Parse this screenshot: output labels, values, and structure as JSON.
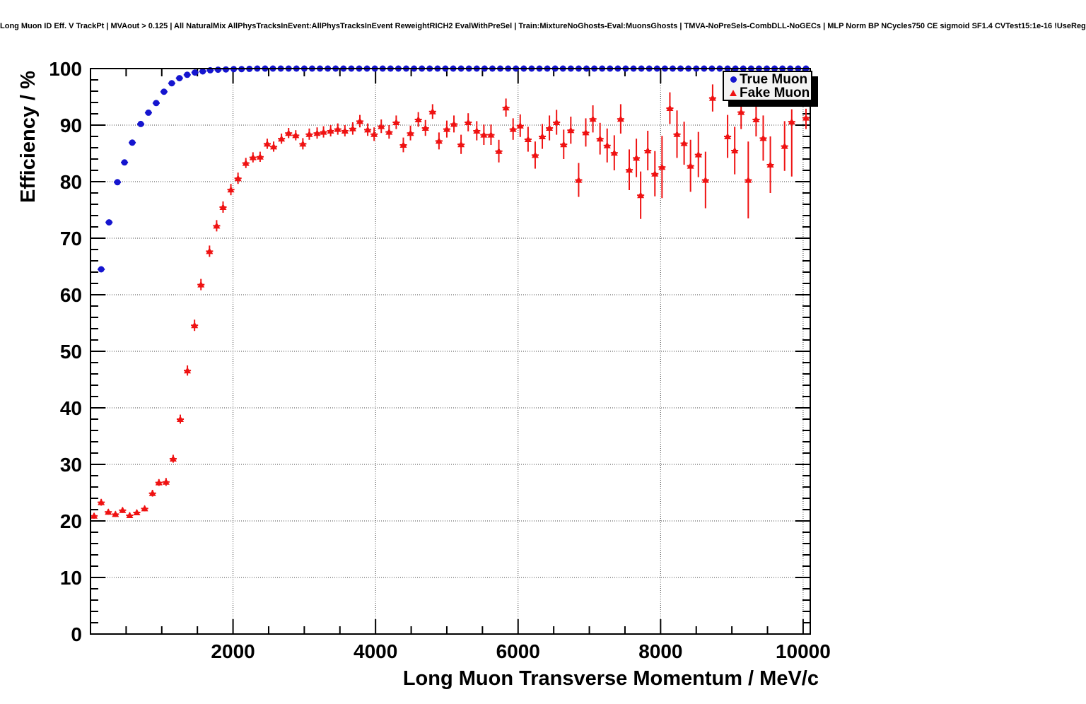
{
  "header": {
    "title": "Long Muon ID Eff. V TrackPt | MVAout > 0.125 | All NaturalMix AllPhysTracksInEvent:AllPhysTracksInEvent ReweightRICH2 EvalWithPreSel | Train:MixtureNoGhosts-Eval:MuonsGhosts | TMVA-NoPreSels-CombDLL-NoGECs | MLP Norm BP NCycles750 CE sigmoid SF1.4 CVTest15:1e-16 !UseReg"
  },
  "legend": {
    "items": [
      {
        "label": "True Muon",
        "marker": "circle",
        "color": "#1515cf"
      },
      {
        "label": "Fake Muon",
        "marker": "triangle",
        "color": "#ef1212"
      }
    ]
  },
  "colors": {
    "true_muon": "#1515cf",
    "fake_muon": "#ef1212",
    "frame": "#000000",
    "grid": "#444444",
    "background": "#ffffff"
  },
  "chart_data": {
    "type": "scatter",
    "title": "Long Muon ID Eff. V TrackPt | MVAout > 0.125 | All NaturalMix AllPhysTracksInEvent:AllPhysTracksInEvent ReweightRICH2 EvalWithPreSel | Train:MixtureNoGhosts-Eval:MuonsGhosts | TMVA-NoPreSels-CombDLL-NoGECs | MLP Norm BP NCycles750 CE sigmoid SF1.4 CVTest15:1e-16 !UseReg",
    "xlabel": "Long Muon Transverse Momentum / MeV/c",
    "ylabel": "Efficiency / %",
    "xlim": [
      0,
      10100
    ],
    "ylim": [
      0,
      100
    ],
    "grid": true,
    "legend_position": "top-right",
    "x_major_ticks": [
      2000,
      4000,
      6000,
      8000,
      10000
    ],
    "x_tick_labels": [
      "2000",
      "4000",
      "6000",
      "8000",
      "10000"
    ],
    "x_minor_step": 500,
    "y_major_ticks": [
      0,
      10,
      20,
      30,
      40,
      50,
      60,
      70,
      80,
      90,
      100
    ],
    "y_tick_labels": [
      "0",
      "10",
      "20",
      "30",
      "40",
      "50",
      "60",
      "70",
      "80",
      "90",
      "100"
    ],
    "y_minor_step": 2,
    "series": [
      {
        "name": "True Muon",
        "marker": "circle",
        "color": "#1515cf",
        "xerr": 50,
        "points": [
          [
            150,
            64.5
          ],
          [
            260,
            72.8
          ],
          [
            378,
            79.9
          ],
          [
            477,
            83.4
          ],
          [
            586,
            86.9
          ],
          [
            705,
            90.2
          ],
          [
            813,
            92.2
          ],
          [
            922,
            93.9
          ],
          [
            1031,
            95.9
          ],
          [
            1140,
            97.4
          ],
          [
            1248,
            98.3
          ],
          [
            1357,
            98.9
          ],
          [
            1466,
            99.3
          ],
          [
            1575,
            99.5
          ],
          [
            1680,
            99.7
          ],
          [
            1790,
            99.8
          ],
          [
            1900,
            99.85
          ],
          [
            2010,
            99.9
          ],
          [
            2120,
            99.9
          ],
          [
            2230,
            99.95
          ],
          [
            2340,
            100
          ],
          [
            2450,
            100
          ],
          [
            2560,
            100
          ],
          [
            2670,
            100
          ],
          [
            2780,
            100
          ],
          [
            2890,
            100
          ],
          [
            3000,
            100
          ],
          [
            3110,
            100
          ],
          [
            3220,
            100
          ],
          [
            3330,
            100
          ],
          [
            3440,
            100
          ],
          [
            3550,
            100
          ],
          [
            3660,
            100
          ],
          [
            3770,
            100
          ],
          [
            3880,
            100
          ],
          [
            3990,
            100
          ],
          [
            4100,
            100
          ],
          [
            4210,
            100
          ],
          [
            4320,
            100
          ],
          [
            4430,
            100
          ],
          [
            4540,
            100
          ],
          [
            4650,
            100
          ],
          [
            4760,
            100
          ],
          [
            4870,
            100
          ],
          [
            4980,
            100
          ],
          [
            5090,
            100
          ],
          [
            5200,
            100
          ],
          [
            5310,
            100
          ],
          [
            5420,
            100
          ],
          [
            5530,
            100
          ],
          [
            5640,
            100
          ],
          [
            5750,
            100
          ],
          [
            5860,
            100
          ],
          [
            5970,
            100
          ],
          [
            6080,
            100
          ],
          [
            6190,
            100
          ],
          [
            6300,
            100
          ],
          [
            6410,
            100
          ],
          [
            6520,
            100
          ],
          [
            6630,
            100
          ],
          [
            6740,
            100
          ],
          [
            6850,
            100
          ],
          [
            6960,
            100
          ],
          [
            7070,
            100
          ],
          [
            7180,
            100
          ],
          [
            7290,
            100
          ],
          [
            7400,
            100
          ],
          [
            7510,
            100
          ],
          [
            7620,
            100
          ],
          [
            7730,
            100
          ],
          [
            7840,
            100
          ],
          [
            7950,
            100
          ],
          [
            8060,
            100
          ],
          [
            8170,
            100
          ],
          [
            8280,
            100
          ],
          [
            8390,
            100
          ],
          [
            8500,
            100
          ],
          [
            8610,
            100
          ],
          [
            8720,
            100
          ],
          [
            8830,
            100
          ],
          [
            8940,
            100
          ],
          [
            9050,
            100
          ],
          [
            9160,
            100
          ],
          [
            9270,
            100
          ],
          [
            9380,
            100
          ],
          [
            9490,
            100
          ],
          [
            9600,
            100
          ],
          [
            9710,
            100
          ],
          [
            9820,
            100
          ],
          [
            9930,
            100
          ],
          [
            10040,
            100
          ]
        ]
      },
      {
        "name": "Fake Muon",
        "marker": "triangle",
        "color": "#ef1212",
        "xerr": 50,
        "points": [
          [
            50,
            20.9,
            0.5,
            0.5
          ],
          [
            150,
            23.3,
            0.6,
            0.6
          ],
          [
            250,
            21.6,
            0.5,
            0.5
          ],
          [
            350,
            21.2,
            0.5,
            0.5
          ],
          [
            450,
            21.9,
            0.5,
            0.5
          ],
          [
            550,
            21.0,
            0.5,
            0.5
          ],
          [
            650,
            21.5,
            0.5,
            0.5
          ],
          [
            760,
            22.2,
            0.5,
            0.5
          ],
          [
            870,
            24.9,
            0.6,
            0.6
          ],
          [
            960,
            26.8,
            0.6,
            0.6
          ],
          [
            1060,
            26.9,
            0.7,
            0.7
          ],
          [
            1160,
            31.0,
            0.7,
            0.7
          ],
          [
            1260,
            38.0,
            0.8,
            0.8
          ],
          [
            1360,
            46.6,
            0.9,
            0.9
          ],
          [
            1460,
            54.6,
            1.0,
            1.0
          ],
          [
            1550,
            61.8,
            1.0,
            1.0
          ],
          [
            1670,
            67.7,
            1.0,
            1.0
          ],
          [
            1770,
            72.2,
            1.0,
            1.0
          ],
          [
            1860,
            75.5,
            1.0,
            1.0
          ],
          [
            1970,
            78.6,
            1.0,
            1.0
          ],
          [
            2070,
            80.6,
            1.0,
            1.0
          ],
          [
            2180,
            83.3,
            0.9,
            0.9
          ],
          [
            2280,
            84.3,
            0.9,
            0.9
          ],
          [
            2380,
            84.4,
            0.9,
            0.9
          ],
          [
            2480,
            86.7,
            0.9,
            0.9
          ],
          [
            2570,
            86.2,
            0.9,
            0.9
          ],
          [
            2680,
            87.6,
            0.9,
            0.9
          ],
          [
            2780,
            88.6,
            0.9,
            0.9
          ],
          [
            2880,
            88.2,
            0.9,
            0.9
          ],
          [
            2980,
            86.7,
            1.0,
            1.0
          ],
          [
            3070,
            88.4,
            1.0,
            1.0
          ],
          [
            3180,
            88.6,
            1.0,
            1.0
          ],
          [
            3270,
            88.8,
            1.0,
            1.0
          ],
          [
            3370,
            89.0,
            1.0,
            1.0
          ],
          [
            3470,
            89.3,
            1.0,
            1.0
          ],
          [
            3570,
            89.0,
            1.0,
            1.0
          ],
          [
            3680,
            89.4,
            1.1,
            1.1
          ],
          [
            3780,
            90.7,
            1.1,
            1.1
          ],
          [
            3890,
            89.2,
            1.1,
            1.1
          ],
          [
            3980,
            88.4,
            1.2,
            1.2
          ],
          [
            4080,
            89.8,
            1.2,
            1.2
          ],
          [
            4190,
            88.8,
            1.2,
            1.2
          ],
          [
            4290,
            90.5,
            1.2,
            1.2
          ],
          [
            4390,
            86.5,
            1.3,
            1.3
          ],
          [
            4490,
            88.6,
            1.3,
            1.3
          ],
          [
            4600,
            91.0,
            1.3,
            1.3
          ],
          [
            4700,
            89.5,
            1.4,
            1.4
          ],
          [
            4800,
            92.4,
            1.3,
            1.3
          ],
          [
            4890,
            87.2,
            1.5,
            1.5
          ],
          [
            5000,
            89.3,
            1.5,
            1.5
          ],
          [
            5100,
            90.2,
            1.5,
            1.5
          ],
          [
            5200,
            86.6,
            1.7,
            1.7
          ],
          [
            5300,
            90.5,
            1.6,
            1.6
          ],
          [
            5420,
            89.0,
            1.7,
            1.7
          ],
          [
            5520,
            88.3,
            1.8,
            1.8
          ],
          [
            5620,
            88.3,
            1.8,
            1.8
          ],
          [
            5730,
            85.4,
            2.0,
            2.0
          ],
          [
            5830,
            93.1,
            1.6,
            1.6
          ],
          [
            5930,
            89.3,
            1.9,
            1.9
          ],
          [
            6030,
            89.9,
            2.0,
            2.0
          ],
          [
            6140,
            87.5,
            2.2,
            2.2
          ],
          [
            6240,
            84.7,
            2.4,
            2.4
          ],
          [
            6340,
            88.0,
            2.2,
            2.2
          ],
          [
            6440,
            89.5,
            2.2,
            2.2
          ],
          [
            6540,
            90.5,
            2.2,
            2.2
          ],
          [
            6640,
            86.6,
            2.6,
            2.6
          ],
          [
            6740,
            89.1,
            2.4,
            2.4
          ],
          [
            6850,
            80.3,
            3.0,
            3.0
          ],
          [
            6950,
            88.7,
            2.5,
            2.5
          ],
          [
            7050,
            91.1,
            2.4,
            2.4
          ],
          [
            7150,
            87.6,
            2.8,
            2.8
          ],
          [
            7250,
            86.4,
            3.0,
            3.0
          ],
          [
            7350,
            85.1,
            3.1,
            3.1
          ],
          [
            7440,
            91.1,
            2.6,
            2.6
          ],
          [
            7560,
            82.1,
            3.6,
            3.6
          ],
          [
            7660,
            84.2,
            3.4,
            3.4
          ],
          [
            7720,
            77.6,
            4.2,
            4.2
          ],
          [
            7820,
            85.5,
            3.5,
            3.5
          ],
          [
            7920,
            81.4,
            4.0,
            4.0
          ],
          [
            8020,
            82.6,
            5.5,
            5.5
          ],
          [
            8130,
            93.0,
            2.8,
            2.8
          ],
          [
            8230,
            88.4,
            4.2,
            4.2
          ],
          [
            8330,
            86.8,
            3.8,
            3.8
          ],
          [
            8420,
            82.8,
            4.6,
            4.6
          ],
          [
            8530,
            84.8,
            4.0,
            4.0
          ],
          [
            8630,
            80.3,
            5.0,
            5.0
          ],
          [
            8730,
            94.8,
            2.4,
            2.4
          ],
          [
            8940,
            88.0,
            3.8,
            3.8
          ],
          [
            9040,
            85.5,
            4.2,
            4.2
          ],
          [
            9130,
            92.3,
            3.0,
            3.0
          ],
          [
            9230,
            80.3,
            6.8,
            6.8
          ],
          [
            9340,
            91.0,
            3.0,
            3.0
          ],
          [
            9440,
            87.7,
            4.0,
            4.0
          ],
          [
            9540,
            83.0,
            5.0,
            5.0
          ],
          [
            9740,
            86.3,
            4.4,
            4.4
          ],
          [
            9840,
            90.6,
            9.7,
            2.2
          ],
          [
            10040,
            91.3,
            2.0,
            1.6
          ]
        ]
      }
    ]
  }
}
